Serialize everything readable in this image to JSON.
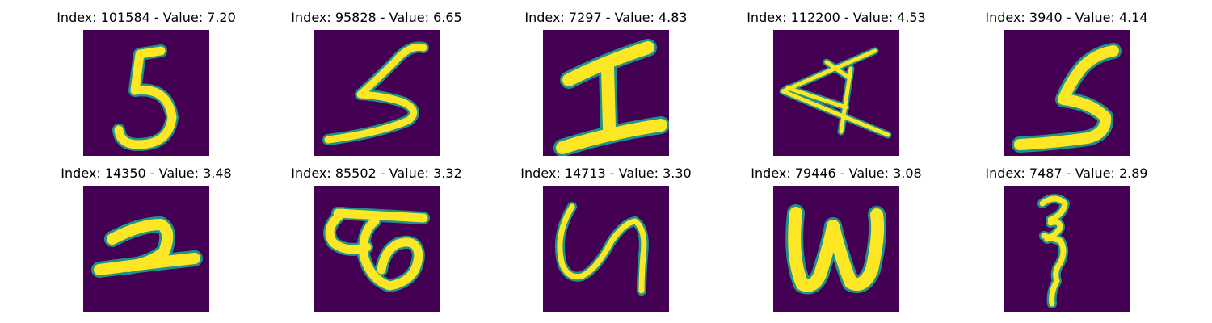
{
  "colors": {
    "background": "#440154",
    "stroke": "#fde725",
    "edge": "#21918c"
  },
  "panels": [
    {
      "title": "Index: 101584 - Value: 7.20",
      "content": "handwritten 5"
    },
    {
      "title": "Index: 95828 - Value: 6.65",
      "content": "handwritten 5"
    },
    {
      "title": "Index: 7297 - Value: 4.83",
      "content": "handwritten I"
    },
    {
      "title": "Index: 112200 - Value: 4.53",
      "content": "handwritten A"
    },
    {
      "title": "Index: 3940 - Value: 4.14",
      "content": "handwritten 5"
    },
    {
      "title": "Index: 14350 - Value: 3.48",
      "content": "handwritten 2"
    },
    {
      "title": "Index: 85502 - Value: 3.32",
      "content": "handwritten loop shape"
    },
    {
      "title": "Index: 14713 - Value: 3.30",
      "content": "handwritten S"
    },
    {
      "title": "Index: 79446 - Value: 3.08",
      "content": "handwritten W"
    },
    {
      "title": "Index: 7487 - Value: 2.89",
      "content": "handwritten 3"
    }
  ]
}
